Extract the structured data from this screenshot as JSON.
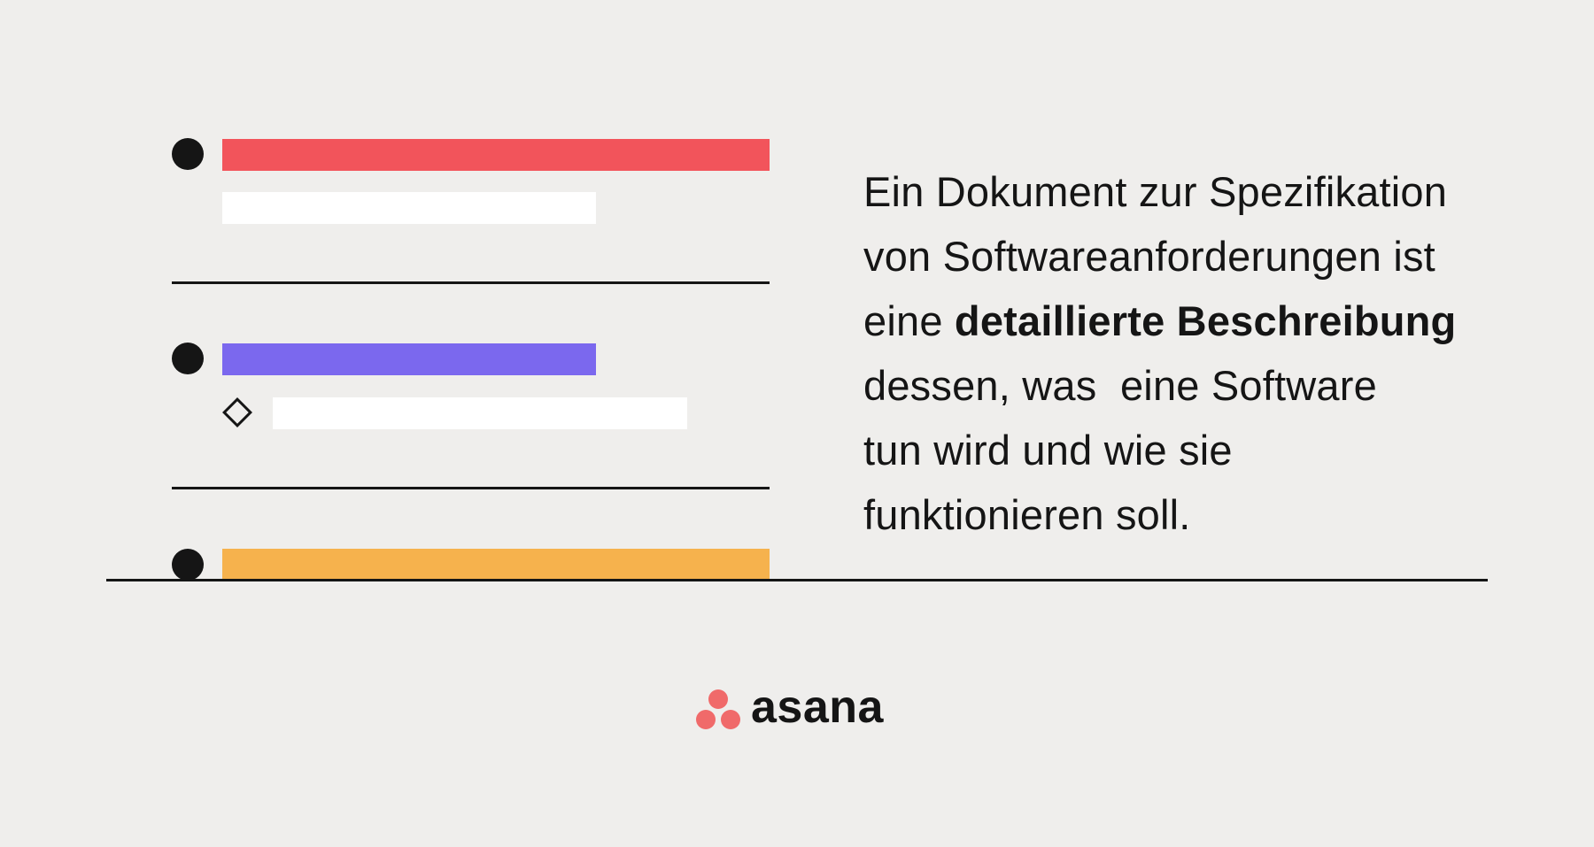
{
  "colors": {
    "background": "#efeeec",
    "ink": "#151515",
    "bar_red": "#f2545b",
    "bar_purple": "#7b68ee",
    "bar_orange": "#f6b24d",
    "bar_white": "#ffffff",
    "logo_coral": "#f06a6a"
  },
  "text": {
    "line1": "Ein Dokument zur Spezifikation",
    "line2": "von Softwareanforderungen ist",
    "line3_prefix": "eine ",
    "line3_bold": "detaillierte Beschreibung",
    "line4": "dessen, was  eine Software",
    "line5": "tun wird und wie sie",
    "line6": "funktionieren soll."
  },
  "logo": {
    "wordmark": "asana",
    "icon": "three-dots-logo-icon"
  },
  "icons": {
    "bullet": "filled-circle-bullet-icon",
    "milestone": "diamond-outline-icon"
  }
}
